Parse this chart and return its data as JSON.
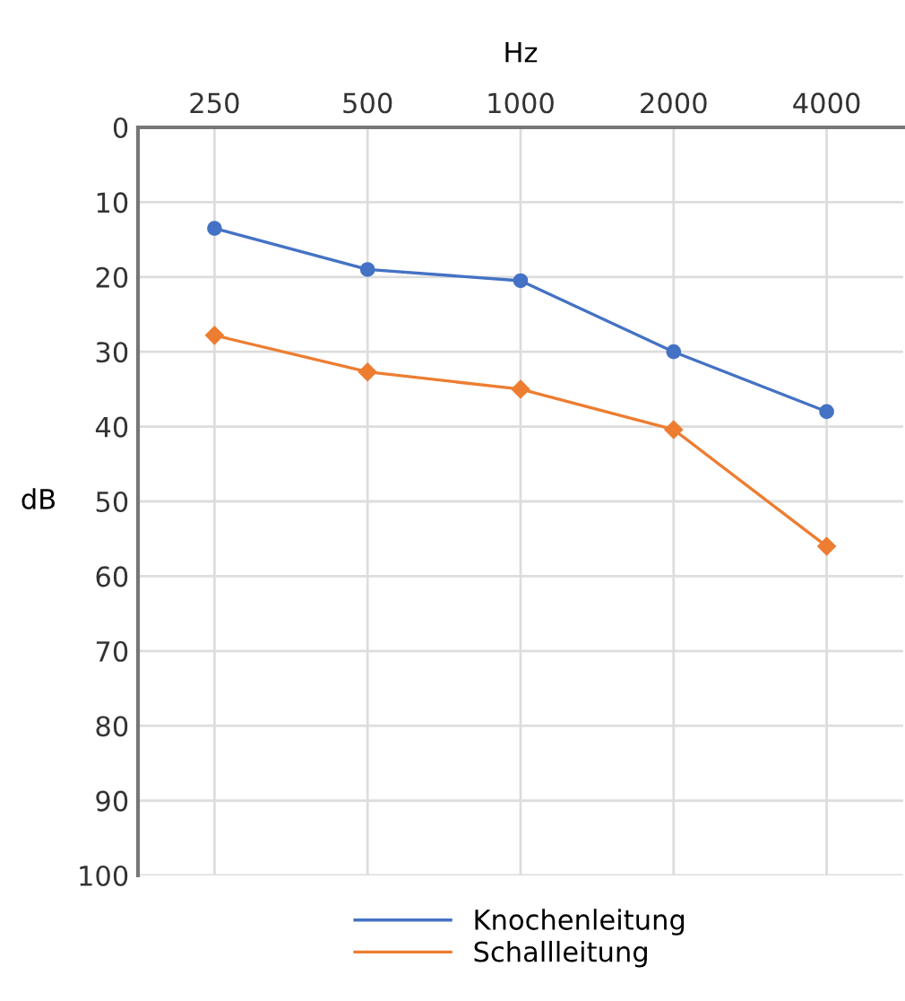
{
  "chart_data": {
    "type": "line",
    "xlabel": "Hz",
    "ylabel": "dB",
    "categories": [
      "250",
      "500",
      "1000",
      "2000",
      "4000"
    ],
    "series": [
      {
        "name": "Knochenleitung",
        "color": "#4472c4",
        "marker": "circle",
        "values": [
          13.5,
          19,
          20.5,
          30,
          38
        ]
      },
      {
        "name": "Schallleitung",
        "color": "#ed7d31",
        "marker": "diamond",
        "values": [
          27.8,
          32.7,
          35,
          40.4,
          56
        ]
      }
    ],
    "ylim": [
      100,
      0
    ],
    "yticks": [
      0,
      10,
      20,
      30,
      40,
      50,
      60,
      70,
      80,
      90,
      100
    ],
    "grid": true,
    "legend": "bottom"
  }
}
